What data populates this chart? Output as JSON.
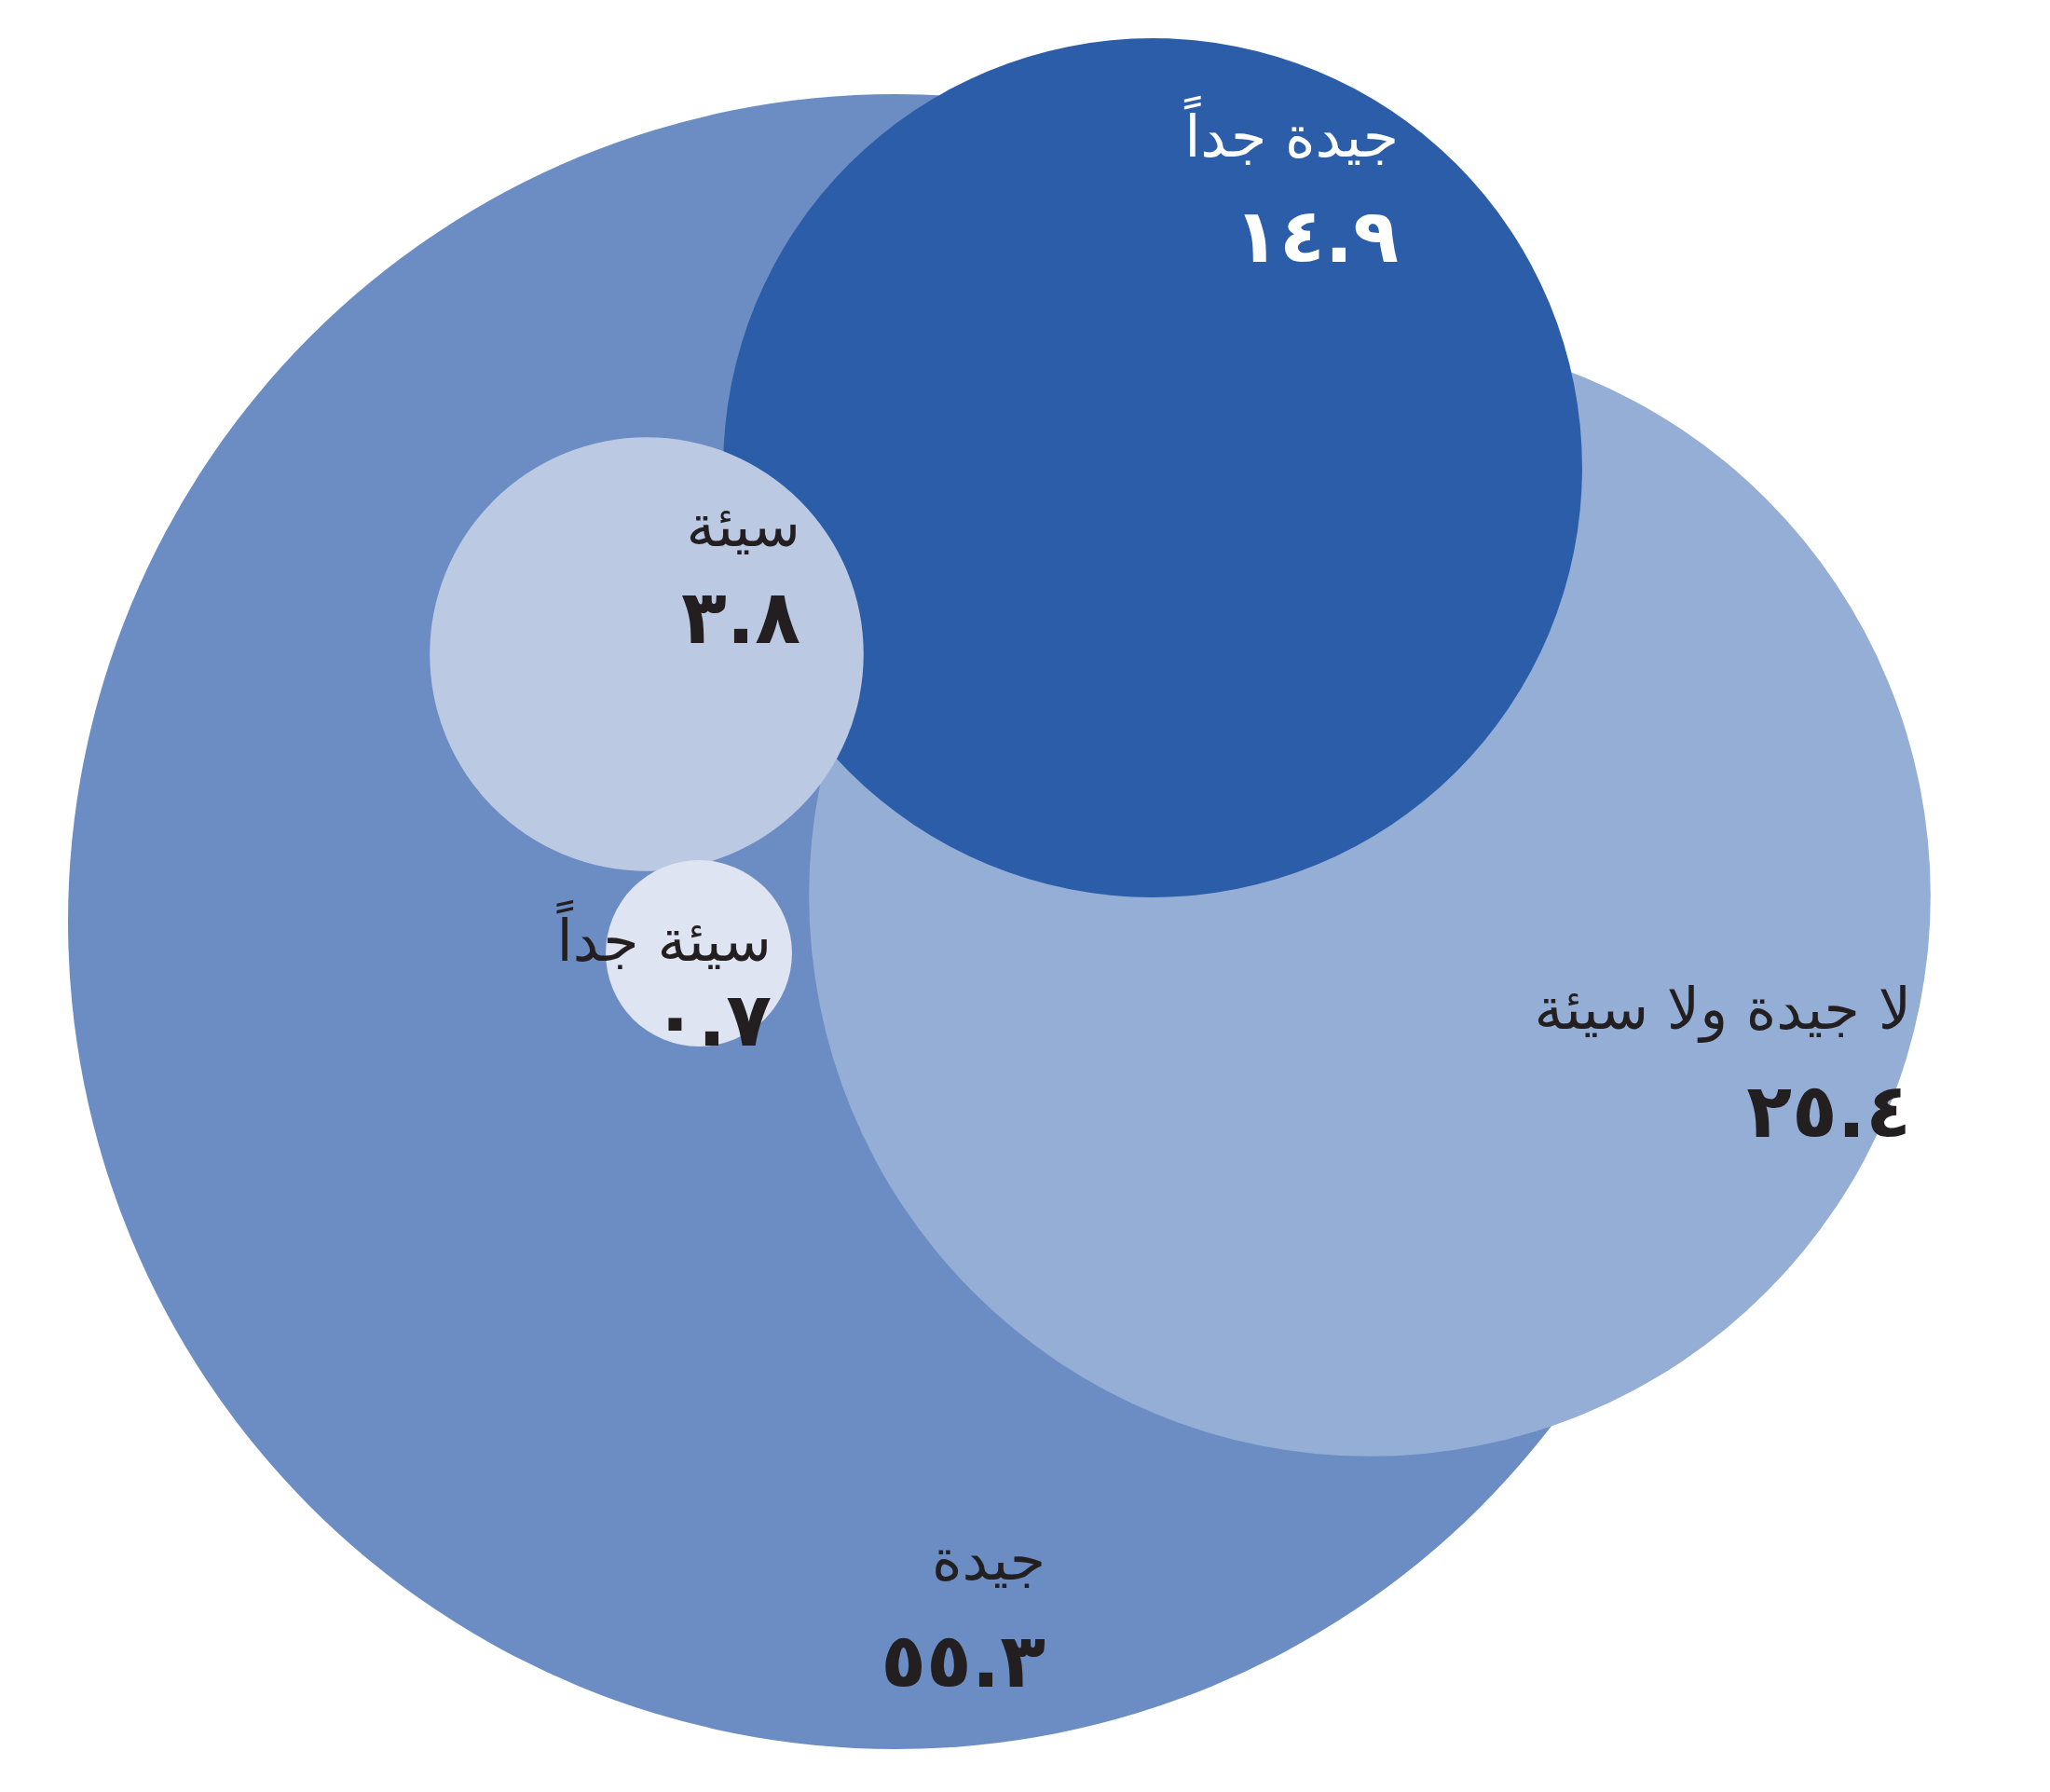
{
  "chart_data": {
    "type": "other",
    "categories": [
      "جيدة",
      "لا جيدة ولا سيئة",
      "جيدة جداً",
      "سيئة",
      "سيئة جداً"
    ],
    "values": [
      55.3,
      25.4,
      14.9,
      3.8,
      0.7
    ],
    "value_labels": [
      "٥٥.٣",
      "٢٥.٤",
      "١٤.٩",
      "٣.٨",
      "٠.٧"
    ],
    "colors": [
      "#6b8dc3",
      "#94aed6",
      "#2c5da9",
      "#bbc9e3",
      "#dfe4f2"
    ]
  }
}
